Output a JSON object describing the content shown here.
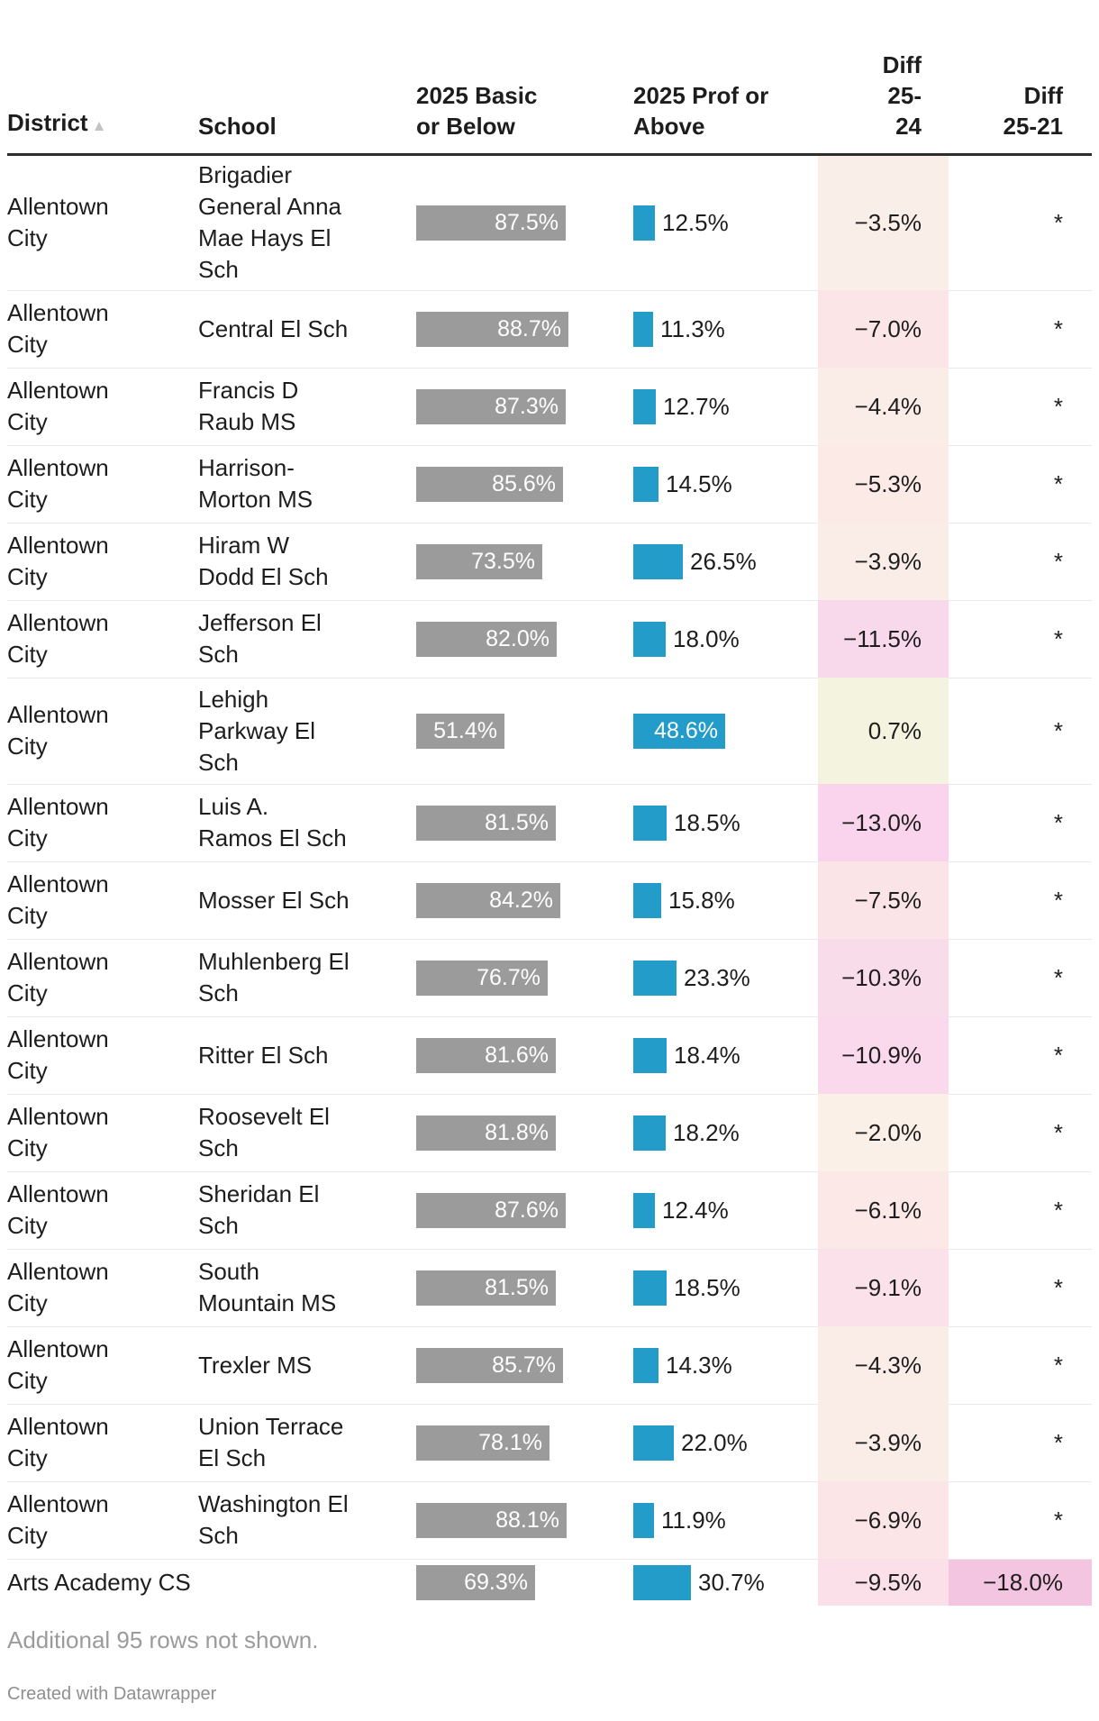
{
  "table": {
    "sort_icon": "▲",
    "columns": {
      "district": "District",
      "school": "School",
      "basic": "2025 Basic\nor Below",
      "prof": "2025 Prof or\nAbove",
      "diff_25_24": "Diff\n25-\n24",
      "diff_25_21": "Diff\n25-21"
    },
    "rows": [
      {
        "district": "Allentown\nCity",
        "school": "Brigadier\nGeneral Anna\nMae Hays El\nSch",
        "basic_pct": 87.5,
        "basic_label": "87.5%",
        "prof_pct": 12.5,
        "prof_label": "12.5%",
        "diff_25_24": "−3.5%",
        "diff_25_24_bg": "#faeee8",
        "diff_25_21": "*",
        "diff_25_21_bg": ""
      },
      {
        "district": "Allentown\nCity",
        "school": "Central El Sch",
        "basic_pct": 88.7,
        "basic_label": "88.7%",
        "prof_pct": 11.3,
        "prof_label": "11.3%",
        "diff_25_24": "−7.0%",
        "diff_25_24_bg": "#fbe5e6",
        "diff_25_21": "*",
        "diff_25_21_bg": ""
      },
      {
        "district": "Allentown\nCity",
        "school": "Francis D\nRaub MS",
        "basic_pct": 87.3,
        "basic_label": "87.3%",
        "prof_pct": 12.7,
        "prof_label": "12.7%",
        "diff_25_24": "−4.4%",
        "diff_25_24_bg": "#faece7",
        "diff_25_21": "*",
        "diff_25_21_bg": ""
      },
      {
        "district": "Allentown\nCity",
        "school": "Harrison-\nMorton MS",
        "basic_pct": 85.6,
        "basic_label": "85.6%",
        "prof_pct": 14.5,
        "prof_label": "14.5%",
        "diff_25_24": "−5.3%",
        "diff_25_24_bg": "#fbeae6",
        "diff_25_21": "*",
        "diff_25_21_bg": ""
      },
      {
        "district": "Allentown\nCity",
        "school": "Hiram W\nDodd El Sch",
        "basic_pct": 73.5,
        "basic_label": "73.5%",
        "prof_pct": 26.5,
        "prof_label": "26.5%",
        "diff_25_24": "−3.9%",
        "diff_25_24_bg": "#faede8",
        "diff_25_21": "*",
        "diff_25_21_bg": ""
      },
      {
        "district": "Allentown\nCity",
        "school": "Jefferson El\nSch",
        "basic_pct": 82.0,
        "basic_label": "82.0%",
        "prof_pct": 18.0,
        "prof_label": "18.0%",
        "diff_25_24": "−11.5%",
        "diff_25_24_bg": "#f8d9ec",
        "diff_25_21": "*",
        "diff_25_21_bg": ""
      },
      {
        "district": "Allentown\nCity",
        "school": "Lehigh\nParkway El\nSch",
        "basic_pct": 51.4,
        "basic_label": "51.4%",
        "prof_pct": 48.6,
        "prof_label": "48.6%",
        "diff_25_24": "0.7%",
        "diff_25_24_bg": "#f4f3df",
        "diff_25_21": "*",
        "diff_25_21_bg": ""
      },
      {
        "district": "Allentown\nCity",
        "school": "Luis A.\nRamos El Sch",
        "basic_pct": 81.5,
        "basic_label": "81.5%",
        "prof_pct": 18.5,
        "prof_label": "18.5%",
        "diff_25_24": "−13.0%",
        "diff_25_24_bg": "#fad4ec",
        "diff_25_21": "*",
        "diff_25_21_bg": ""
      },
      {
        "district": "Allentown\nCity",
        "school": "Mosser El Sch",
        "basic_pct": 84.2,
        "basic_label": "84.2%",
        "prof_pct": 15.8,
        "prof_label": "15.8%",
        "diff_25_24": "−7.5%",
        "diff_25_24_bg": "#fae4e7",
        "diff_25_21": "*",
        "diff_25_21_bg": ""
      },
      {
        "district": "Allentown\nCity",
        "school": "Muhlenberg El\nSch",
        "basic_pct": 76.7,
        "basic_label": "76.7%",
        "prof_pct": 23.3,
        "prof_label": "23.3%",
        "diff_25_24": "−10.3%",
        "diff_25_24_bg": "#f9dcea",
        "diff_25_21": "*",
        "diff_25_21_bg": ""
      },
      {
        "district": "Allentown\nCity",
        "school": "Ritter El Sch",
        "basic_pct": 81.6,
        "basic_label": "81.6%",
        "prof_pct": 18.4,
        "prof_label": "18.4%",
        "diff_25_24": "−10.9%",
        "diff_25_24_bg": "#f9d9eb",
        "diff_25_21": "*",
        "diff_25_21_bg": ""
      },
      {
        "district": "Allentown\nCity",
        "school": "Roosevelt El\nSch",
        "basic_pct": 81.8,
        "basic_label": "81.8%",
        "prof_pct": 18.2,
        "prof_label": "18.2%",
        "diff_25_24": "−2.0%",
        "diff_25_24_bg": "#faf0e7",
        "diff_25_21": "*",
        "diff_25_21_bg": ""
      },
      {
        "district": "Allentown\nCity",
        "school": "Sheridan El\nSch",
        "basic_pct": 87.6,
        "basic_label": "87.6%",
        "prof_pct": 12.4,
        "prof_label": "12.4%",
        "diff_25_24": "−6.1%",
        "diff_25_24_bg": "#fbe8e7",
        "diff_25_21": "*",
        "diff_25_21_bg": ""
      },
      {
        "district": "Allentown\nCity",
        "school": "South\nMountain MS",
        "basic_pct": 81.5,
        "basic_label": "81.5%",
        "prof_pct": 18.5,
        "prof_label": "18.5%",
        "diff_25_24": "−9.1%",
        "diff_25_24_bg": "#fbe2ea",
        "diff_25_21": "*",
        "diff_25_21_bg": ""
      },
      {
        "district": "Allentown\nCity",
        "school": "Trexler MS",
        "basic_pct": 85.7,
        "basic_label": "85.7%",
        "prof_pct": 14.3,
        "prof_label": "14.3%",
        "diff_25_24": "−4.3%",
        "diff_25_24_bg": "#faece6",
        "diff_25_21": "*",
        "diff_25_21_bg": ""
      },
      {
        "district": "Allentown\nCity",
        "school": "Union Terrace\nEl Sch",
        "basic_pct": 78.1,
        "basic_label": "78.1%",
        "prof_pct": 22.0,
        "prof_label": "22.0%",
        "diff_25_24": "−3.9%",
        "diff_25_24_bg": "#faede8",
        "diff_25_21": "*",
        "diff_25_21_bg": ""
      },
      {
        "district": "Allentown\nCity",
        "school": "Washington El\nSch",
        "basic_pct": 88.1,
        "basic_label": "88.1%",
        "prof_pct": 11.9,
        "prof_label": "11.9%",
        "diff_25_24": "−6.9%",
        "diff_25_24_bg": "#fbe5e6",
        "diff_25_21": "*",
        "diff_25_21_bg": ""
      },
      {
        "district": "Arts Academy CS",
        "school": "",
        "basic_pct": 69.3,
        "basic_label": "69.3%",
        "prof_pct": 30.7,
        "prof_label": "30.7%",
        "diff_25_24": "−9.5%",
        "diff_25_24_bg": "#fbe0ea",
        "diff_25_21": "−18.0%",
        "diff_25_21_bg": "#f4c5e1"
      }
    ]
  },
  "footer": {
    "note": "Additional 95 rows not shown.",
    "credit": "Created with Datawrapper"
  },
  "colors": {
    "bar_gray": "#9b9b9b",
    "bar_blue": "#249cca",
    "header_rule": "#2d2d2d",
    "row_border": "#e9e9e9",
    "text": "#1d1d1d",
    "muted_text": "#9b9b9b",
    "credit_text": "#8f8f8f",
    "sort_icon": "#c3c3c3"
  },
  "chart_data": {
    "type": "table",
    "columns": [
      "District",
      "School",
      "2025 Basic or Below",
      "2025 Prof or Above",
      "Diff 25-24",
      "Diff 25-21"
    ],
    "rows": [
      [
        "Allentown City",
        "Brigadier General Anna Mae Hays El Sch",
        87.5,
        12.5,
        -3.5,
        "*"
      ],
      [
        "Allentown City",
        "Central El Sch",
        88.7,
        11.3,
        -7.0,
        "*"
      ],
      [
        "Allentown City",
        "Francis D Raub MS",
        87.3,
        12.7,
        -4.4,
        "*"
      ],
      [
        "Allentown City",
        "Harrison-Morton MS",
        85.6,
        14.5,
        -5.3,
        "*"
      ],
      [
        "Allentown City",
        "Hiram W Dodd El Sch",
        73.5,
        26.5,
        -3.9,
        "*"
      ],
      [
        "Allentown City",
        "Jefferson El Sch",
        82.0,
        18.0,
        -11.5,
        "*"
      ],
      [
        "Allentown City",
        "Lehigh Parkway El Sch",
        51.4,
        48.6,
        0.7,
        "*"
      ],
      [
        "Allentown City",
        "Luis A. Ramos El Sch",
        81.5,
        18.5,
        -13.0,
        "*"
      ],
      [
        "Allentown City",
        "Mosser El Sch",
        84.2,
        15.8,
        -7.5,
        "*"
      ],
      [
        "Allentown City",
        "Muhlenberg El Sch",
        76.7,
        23.3,
        -10.3,
        "*"
      ],
      [
        "Allentown City",
        "Ritter El Sch",
        81.6,
        18.4,
        -10.9,
        "*"
      ],
      [
        "Allentown City",
        "Roosevelt El Sch",
        81.8,
        18.2,
        -2.0,
        "*"
      ],
      [
        "Allentown City",
        "Sheridan El Sch",
        87.6,
        12.4,
        -6.1,
        "*"
      ],
      [
        "Allentown City",
        "South Mountain MS",
        81.5,
        18.5,
        -9.1,
        "*"
      ],
      [
        "Allentown City",
        "Trexler MS",
        85.7,
        14.3,
        -4.3,
        "*"
      ],
      [
        "Allentown City",
        "Union Terrace El Sch",
        78.1,
        22.0,
        -3.9,
        "*"
      ],
      [
        "Allentown City",
        "Washington El Sch",
        88.1,
        11.9,
        -6.9,
        "*"
      ],
      [
        "Arts Academy CS",
        "",
        69.3,
        30.7,
        -9.5,
        -18.0
      ]
    ],
    "bar_columns": [
      "2025 Basic or Below",
      "2025 Prof or Above"
    ],
    "heatmap_columns": [
      "Diff 25-24",
      "Diff 25-21"
    ],
    "note": "Additional 95 rows not shown."
  }
}
